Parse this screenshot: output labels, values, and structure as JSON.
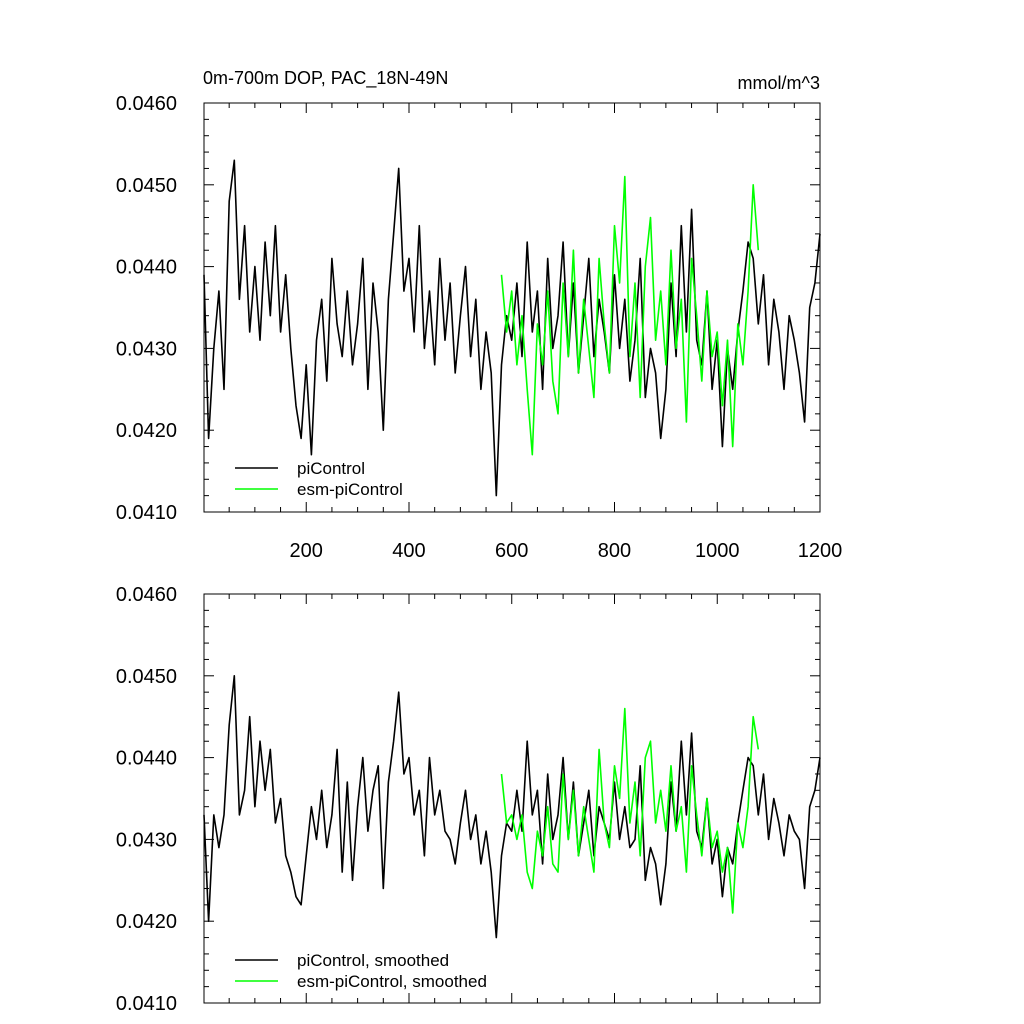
{
  "chart_data": [
    {
      "type": "line",
      "title": "0m-700m DOP, PAC_18N-49N",
      "units": "mmol/m^3",
      "xlim": [
        1,
        1200
      ],
      "ylim": [
        0.041,
        0.046
      ],
      "x_ticks": [
        200,
        400,
        600,
        800,
        1000,
        1200
      ],
      "x_tick_labels": [
        "200",
        "400",
        "600",
        "800",
        "1000",
        "1200"
      ],
      "show_x_tick_labels": true,
      "y_ticks": [
        0.041,
        0.042,
        0.043,
        0.044,
        0.045,
        0.046
      ],
      "y_tick_labels": [
        "0.0410",
        "0.0420",
        "0.0430",
        "0.0440",
        "0.0450",
        "0.0460"
      ],
      "legend_position": "bottom-left",
      "grid": false,
      "series": [
        {
          "name": "piControl",
          "color": "#000000",
          "x": [
            1,
            10,
            20,
            30,
            40,
            50,
            60,
            70,
            80,
            90,
            100,
            110,
            120,
            130,
            140,
            150,
            160,
            170,
            180,
            190,
            200,
            210,
            220,
            230,
            240,
            250,
            260,
            270,
            280,
            290,
            300,
            310,
            320,
            330,
            340,
            350,
            360,
            370,
            380,
            390,
            400,
            410,
            420,
            430,
            440,
            450,
            460,
            470,
            480,
            490,
            500,
            510,
            520,
            530,
            540,
            550,
            560,
            570,
            580,
            590,
            600,
            610,
            620,
            630,
            640,
            650,
            660,
            670,
            680,
            690,
            700,
            710,
            720,
            730,
            740,
            750,
            760,
            770,
            780,
            790,
            800,
            810,
            820,
            830,
            840,
            850,
            860,
            870,
            880,
            890,
            900,
            910,
            920,
            930,
            940,
            950,
            960,
            970,
            980,
            990,
            1000,
            1010,
            1020,
            1030,
            1040,
            1050,
            1060,
            1070,
            1080,
            1090,
            1100,
            1110,
            1120,
            1130,
            1140,
            1150,
            1160,
            1170,
            1180,
            1190,
            1200
          ],
          "y": [
            0.0439,
            0.0419,
            0.043,
            0.0437,
            0.0425,
            0.0448,
            0.0453,
            0.0436,
            0.0445,
            0.0432,
            0.044,
            0.0431,
            0.0443,
            0.0434,
            0.0445,
            0.0432,
            0.0439,
            0.043,
            0.0423,
            0.0419,
            0.0428,
            0.0417,
            0.0431,
            0.0436,
            0.0426,
            0.0441,
            0.0433,
            0.0429,
            0.0437,
            0.0428,
            0.0433,
            0.0441,
            0.0425,
            0.0438,
            0.0432,
            0.042,
            0.0436,
            0.0444,
            0.0452,
            0.0437,
            0.0441,
            0.0432,
            0.0445,
            0.043,
            0.0437,
            0.0428,
            0.0441,
            0.0431,
            0.0438,
            0.0427,
            0.0434,
            0.044,
            0.0429,
            0.0436,
            0.0425,
            0.0432,
            0.0427,
            0.0412,
            0.0428,
            0.0434,
            0.0431,
            0.0438,
            0.0429,
            0.0443,
            0.0432,
            0.0437,
            0.0425,
            0.0441,
            0.043,
            0.0434,
            0.0443,
            0.0429,
            0.0438,
            0.0427,
            0.0434,
            0.0441,
            0.0429,
            0.0436,
            0.0432,
            0.0427,
            0.0439,
            0.043,
            0.0436,
            0.0426,
            0.0431,
            0.0441,
            0.0424,
            0.043,
            0.0427,
            0.0419,
            0.0425,
            0.0438,
            0.0429,
            0.0445,
            0.0432,
            0.0447,
            0.0431,
            0.0428,
            0.0437,
            0.0425,
            0.0431,
            0.0418,
            0.043,
            0.0425,
            0.0432,
            0.0437,
            0.0443,
            0.0441,
            0.0433,
            0.0439,
            0.0428,
            0.0436,
            0.0432,
            0.0425,
            0.0434,
            0.0431,
            0.0427,
            0.0421,
            0.0435,
            0.0438,
            0.0444
          ]
        },
        {
          "name": "esm-piControl",
          "color": "#00ff00",
          "x": [
            580,
            590,
            600,
            610,
            620,
            630,
            640,
            650,
            660,
            670,
            680,
            690,
            700,
            710,
            720,
            730,
            740,
            750,
            760,
            770,
            780,
            790,
            800,
            810,
            820,
            830,
            840,
            850,
            860,
            870,
            880,
            890,
            900,
            910,
            920,
            930,
            940,
            950,
            960,
            970,
            980,
            990,
            1000,
            1010,
            1020,
            1030,
            1040,
            1050,
            1060,
            1070,
            1080
          ],
          "y": [
            0.0439,
            0.0432,
            0.0437,
            0.0428,
            0.0434,
            0.0425,
            0.0417,
            0.0433,
            0.0428,
            0.0437,
            0.0426,
            0.0422,
            0.0438,
            0.0429,
            0.0442,
            0.0427,
            0.0436,
            0.043,
            0.0424,
            0.0441,
            0.0433,
            0.0427,
            0.0445,
            0.0438,
            0.0451,
            0.0429,
            0.0438,
            0.0424,
            0.044,
            0.0446,
            0.0431,
            0.0437,
            0.0428,
            0.0442,
            0.043,
            0.0436,
            0.0421,
            0.0441,
            0.0434,
            0.0426,
            0.0437,
            0.0429,
            0.0432,
            0.0423,
            0.0431,
            0.0418,
            0.0433,
            0.0428,
            0.0437,
            0.045,
            0.0442
          ]
        }
      ]
    },
    {
      "type": "line",
      "title": "",
      "xlim": [
        1,
        1200
      ],
      "ylim": [
        0.041,
        0.046
      ],
      "x_ticks": [
        200,
        400,
        600,
        800,
        1000,
        1200
      ],
      "show_x_tick_labels": false,
      "y_ticks": [
        0.041,
        0.042,
        0.043,
        0.044,
        0.045,
        0.046
      ],
      "y_tick_labels": [
        "0.0410",
        "0.0420",
        "0.0430",
        "0.0440",
        "0.0450",
        "0.0460"
      ],
      "legend_position": "bottom-left",
      "grid": false,
      "series": [
        {
          "name": "piControl, smoothed",
          "color": "#000000",
          "x": [
            1,
            10,
            20,
            30,
            40,
            50,
            60,
            70,
            80,
            90,
            100,
            110,
            120,
            130,
            140,
            150,
            160,
            170,
            180,
            190,
            200,
            210,
            220,
            230,
            240,
            250,
            260,
            270,
            280,
            290,
            300,
            310,
            320,
            330,
            340,
            350,
            360,
            370,
            380,
            390,
            400,
            410,
            420,
            430,
            440,
            450,
            460,
            470,
            480,
            490,
            500,
            510,
            520,
            530,
            540,
            550,
            560,
            570,
            580,
            590,
            600,
            610,
            620,
            630,
            640,
            650,
            660,
            670,
            680,
            690,
            700,
            710,
            720,
            730,
            740,
            750,
            760,
            770,
            780,
            790,
            800,
            810,
            820,
            830,
            840,
            850,
            860,
            870,
            880,
            890,
            900,
            910,
            920,
            930,
            940,
            950,
            960,
            970,
            980,
            990,
            1000,
            1010,
            1020,
            1030,
            1040,
            1050,
            1060,
            1070,
            1080,
            1090,
            1100,
            1110,
            1120,
            1130,
            1140,
            1150,
            1160,
            1170,
            1180,
            1190,
            1200
          ],
          "y": [
            0.0433,
            0.042,
            0.0433,
            0.0429,
            0.0433,
            0.0444,
            0.045,
            0.0433,
            0.0436,
            0.0445,
            0.0434,
            0.0442,
            0.0436,
            0.0441,
            0.0432,
            0.0435,
            0.0428,
            0.0426,
            0.0423,
            0.0422,
            0.0428,
            0.0434,
            0.043,
            0.0436,
            0.0429,
            0.0433,
            0.0441,
            0.0426,
            0.0437,
            0.0425,
            0.0434,
            0.044,
            0.0431,
            0.0436,
            0.0439,
            0.0424,
            0.0437,
            0.0442,
            0.0448,
            0.0438,
            0.044,
            0.0433,
            0.0436,
            0.0428,
            0.044,
            0.0433,
            0.0436,
            0.0431,
            0.043,
            0.0427,
            0.0432,
            0.0436,
            0.043,
            0.0433,
            0.0427,
            0.0431,
            0.0426,
            0.0418,
            0.0428,
            0.0432,
            0.0431,
            0.0436,
            0.0431,
            0.0442,
            0.0433,
            0.0436,
            0.0427,
            0.0438,
            0.043,
            0.0433,
            0.044,
            0.043,
            0.0437,
            0.0428,
            0.0432,
            0.0436,
            0.0428,
            0.0434,
            0.0432,
            0.043,
            0.0437,
            0.043,
            0.0434,
            0.0429,
            0.043,
            0.0439,
            0.0425,
            0.0429,
            0.0427,
            0.0422,
            0.0427,
            0.0437,
            0.0431,
            0.0442,
            0.0433,
            0.0443,
            0.0431,
            0.0429,
            0.0435,
            0.0427,
            0.043,
            0.0423,
            0.0429,
            0.0427,
            0.0432,
            0.0436,
            0.044,
            0.0439,
            0.0433,
            0.0438,
            0.043,
            0.0435,
            0.0432,
            0.0428,
            0.0433,
            0.0431,
            0.043,
            0.0424,
            0.0434,
            0.0436,
            0.044
          ]
        },
        {
          "name": "esm-piControl, smoothed",
          "color": "#00ff00",
          "x": [
            580,
            590,
            600,
            610,
            620,
            630,
            640,
            650,
            660,
            670,
            680,
            690,
            700,
            710,
            720,
            730,
            740,
            750,
            760,
            770,
            780,
            790,
            800,
            810,
            820,
            830,
            840,
            850,
            860,
            870,
            880,
            890,
            900,
            910,
            920,
            930,
            940,
            950,
            960,
            970,
            980,
            990,
            1000,
            1010,
            1020,
            1030,
            1040,
            1050,
            1060,
            1070,
            1080
          ],
          "y": [
            0.0438,
            0.0432,
            0.0433,
            0.043,
            0.0433,
            0.0426,
            0.0424,
            0.0431,
            0.0428,
            0.0434,
            0.0427,
            0.0426,
            0.0438,
            0.043,
            0.0436,
            0.0428,
            0.0434,
            0.043,
            0.0426,
            0.0441,
            0.0432,
            0.0429,
            0.0439,
            0.0435,
            0.0446,
            0.0432,
            0.0437,
            0.0428,
            0.044,
            0.0442,
            0.0432,
            0.0436,
            0.0431,
            0.0439,
            0.0431,
            0.0434,
            0.0426,
            0.0439,
            0.0433,
            0.0428,
            0.0435,
            0.0429,
            0.0431,
            0.0426,
            0.0429,
            0.0421,
            0.0432,
            0.0429,
            0.0434,
            0.0445,
            0.0441
          ]
        }
      ]
    }
  ]
}
